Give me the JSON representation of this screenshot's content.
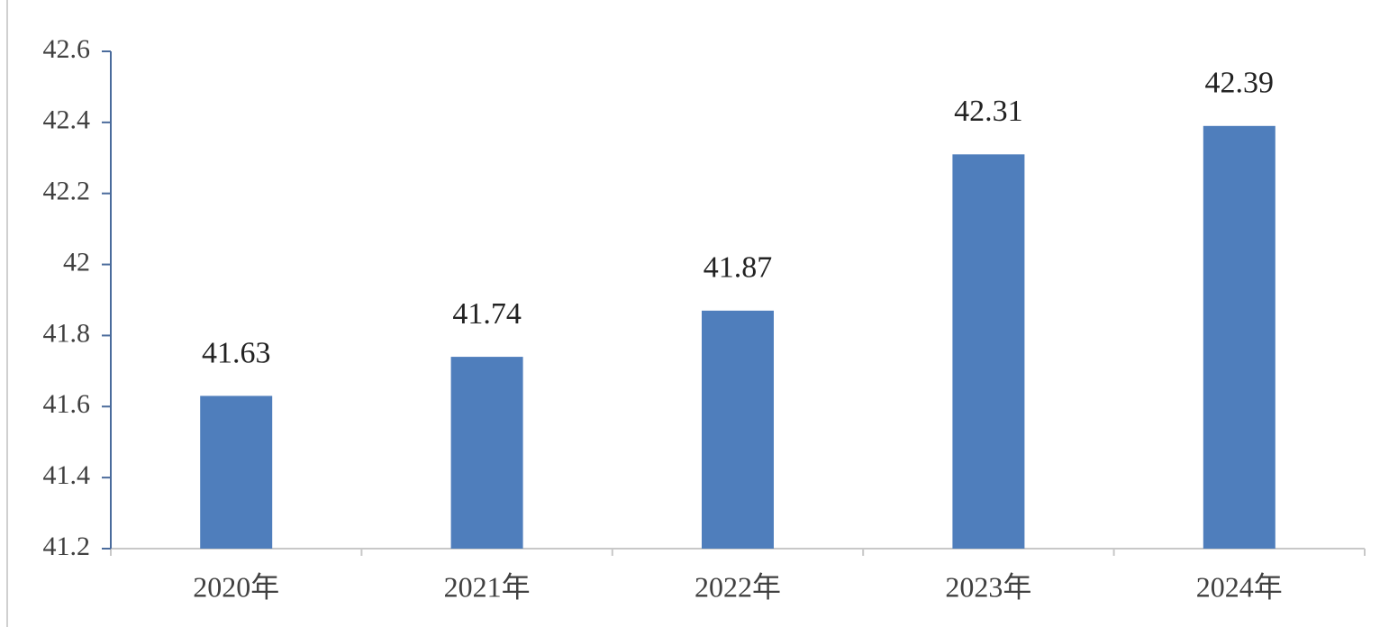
{
  "chart_data": {
    "type": "bar",
    "categories": [
      "2020年",
      "2021年",
      "2022年",
      "2023年",
      "2024年"
    ],
    "values": [
      41.63,
      41.74,
      41.87,
      42.31,
      42.39
    ],
    "color": "#4f7ebc",
    "ylim": [
      41.2,
      42.6
    ],
    "yticks": [
      41.2,
      41.4,
      41.6,
      41.8,
      42,
      42.2,
      42.4,
      42.6
    ]
  }
}
